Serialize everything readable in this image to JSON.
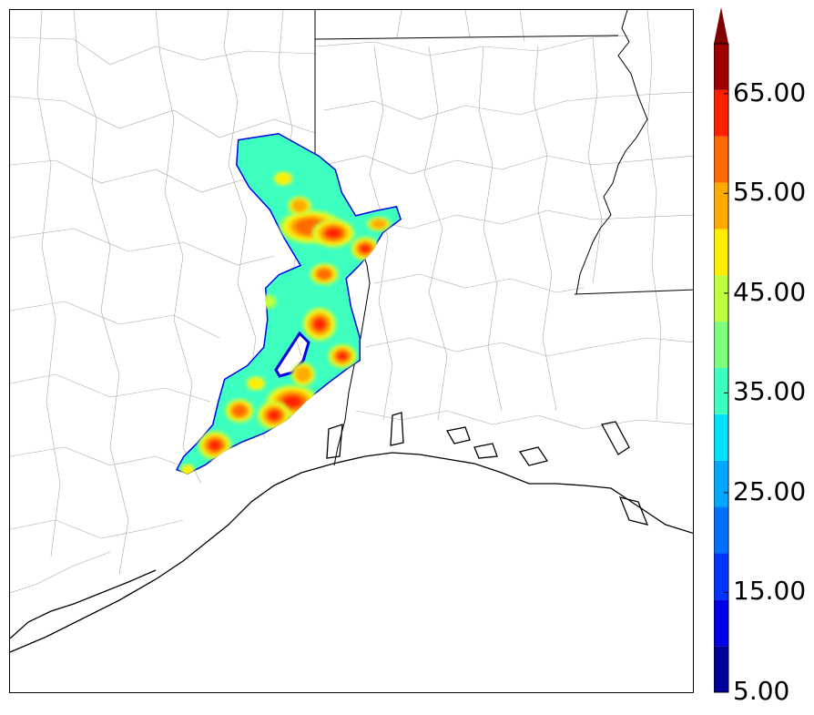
{
  "map": {
    "type": "contour-heatmap-overlay",
    "basemap_features": [
      "county-boundaries",
      "state-boundaries",
      "coastline",
      "river"
    ],
    "field": {
      "levels": [
        5,
        10,
        15,
        20,
        25,
        30,
        35,
        40,
        45,
        50,
        55,
        60,
        65,
        70
      ],
      "colors": [
        "#00009a",
        "#0000e6",
        "#0033ff",
        "#0070ff",
        "#00a8ff",
        "#00e0ff",
        "#3dffc0",
        "#7dff7d",
        "#c0ff3d",
        "#ffee00",
        "#ffaa00",
        "#ff6a00",
        "#ff2000",
        "#a00000"
      ],
      "extend": "max",
      "extend_color": "#800000",
      "peak_value": 68
    }
  },
  "colorbar": {
    "tick_labels": [
      "5.00",
      "15.00",
      "25.00",
      "35.00",
      "45.00",
      "55.00",
      "65.00"
    ],
    "min": 5,
    "max": 70,
    "orientation": "vertical",
    "placement": "right"
  }
}
